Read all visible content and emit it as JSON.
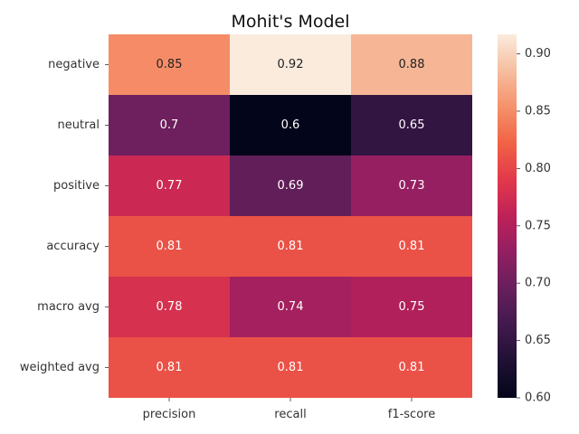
{
  "chart_data": {
    "type": "heatmap",
    "title": "Mohit's Model",
    "xlabel": "",
    "ylabel": "",
    "columns": [
      "precision",
      "recall",
      "f1-score"
    ],
    "rows": [
      "negative",
      "neutral",
      "positive",
      "accuracy",
      "macro avg",
      "weighted avg"
    ],
    "values": [
      [
        0.85,
        0.92,
        0.88
      ],
      [
        0.7,
        0.6,
        0.65
      ],
      [
        0.77,
        0.69,
        0.73
      ],
      [
        0.81,
        0.81,
        0.81
      ],
      [
        0.78,
        0.74,
        0.75
      ],
      [
        0.81,
        0.81,
        0.81
      ]
    ],
    "labels": [
      [
        "0.85",
        "0.92",
        "0.88"
      ],
      [
        "0.7",
        "0.6",
        "0.65"
      ],
      [
        "0.77",
        "0.69",
        "0.73"
      ],
      [
        "0.81",
        "0.81",
        "0.81"
      ],
      [
        "0.78",
        "0.74",
        "0.75"
      ],
      [
        "0.81",
        "0.81",
        "0.81"
      ]
    ],
    "colorbar": {
      "min": 0.6,
      "max": 0.917,
      "ticks": [
        "0.60",
        "0.65",
        "0.70",
        "0.75",
        "0.80",
        "0.85",
        "0.90"
      ],
      "colormap": "rocket"
    }
  }
}
